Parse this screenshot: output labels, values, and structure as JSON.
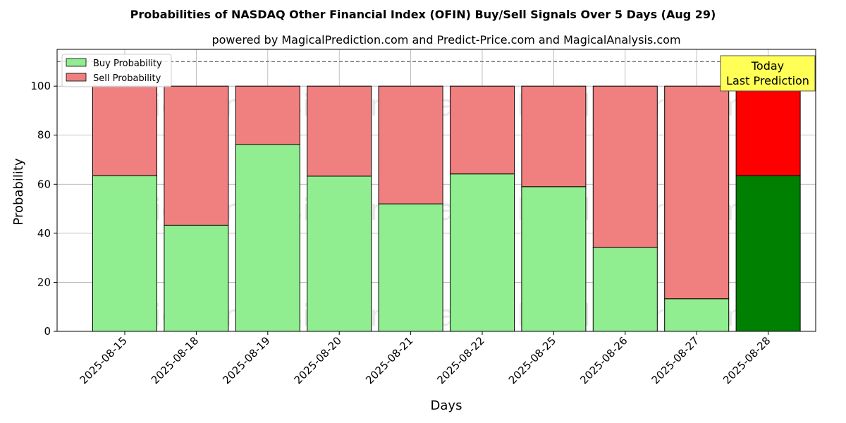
{
  "chart_data": {
    "type": "bar",
    "title": "Probabilities of NASDAQ Other Financial Index (OFIN) Buy/Sell Signals Over 5 Days (Aug 29)",
    "subtitle": "powered by MagicalPrediction.com and Predict-Price.com and MagicalAnalysis.com",
    "xlabel": "Days",
    "ylabel": "Probability",
    "ylim": [
      0,
      115
    ],
    "yticks": [
      0,
      20,
      40,
      60,
      80,
      100
    ],
    "reference_line": 110,
    "grid": true,
    "legend_position": "top-left",
    "categories": [
      "2025-08-15",
      "2025-08-18",
      "2025-08-19",
      "2025-08-20",
      "2025-08-21",
      "2025-08-22",
      "2025-08-25",
      "2025-08-26",
      "2025-08-27",
      "2025-08-28"
    ],
    "series": [
      {
        "name": "Buy Probability",
        "values": [
          63.5,
          43.3,
          76.2,
          63.3,
          52.0,
          64.2,
          59.0,
          34.2,
          13.3,
          63.5
        ]
      },
      {
        "name": "Sell Probability",
        "values": [
          36.5,
          56.7,
          23.8,
          36.7,
          48.0,
          35.8,
          41.0,
          65.8,
          86.7,
          36.5
        ]
      }
    ],
    "colors": {
      "buy": "#90EE90",
      "sell": "#F08080",
      "buy_highlight": "#008000",
      "sell_highlight": "#FF0000",
      "annotation_bg": "#FFFF55"
    },
    "highlight_index": 9,
    "annotation": {
      "line1": "Today",
      "line2": "Last Prediction"
    },
    "watermarks": [
      "MagicalAnalysis.com",
      "MagicalPrediction.com"
    ]
  }
}
